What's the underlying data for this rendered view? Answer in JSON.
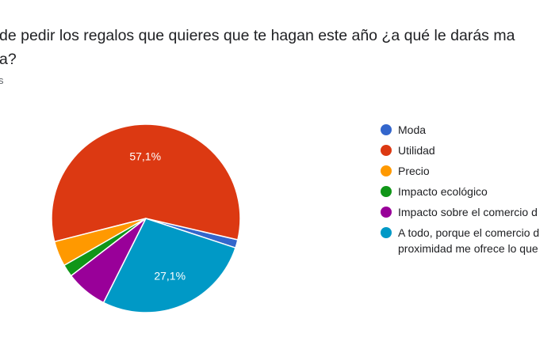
{
  "question": {
    "line1": "de pedir los regalos que quieres que te hagan este año ¿a qué le darás ma",
    "line2": "a?"
  },
  "responses_text": "s",
  "chart_data": {
    "type": "pie",
    "title": "",
    "slices": [
      {
        "label": "Moda",
        "value": 1.4,
        "color": "#3366cc"
      },
      {
        "label": "Utilidad",
        "value": 57.1,
        "color": "#dc3912",
        "data_label": "57,1%"
      },
      {
        "label": "Precio",
        "value": 4.3,
        "color": "#ff9900"
      },
      {
        "label": "Impacto ecológico",
        "value": 2.1,
        "color": "#109618"
      },
      {
        "label": "Impacto sobre el comercio d",
        "value": 7.1,
        "color": "#990099"
      },
      {
        "label": "A todo, porque el comercio d\nproximidad me ofrece lo que",
        "value": 27.1,
        "color": "#0099c6",
        "data_label": "27,1%"
      }
    ],
    "legend_position": "right"
  }
}
